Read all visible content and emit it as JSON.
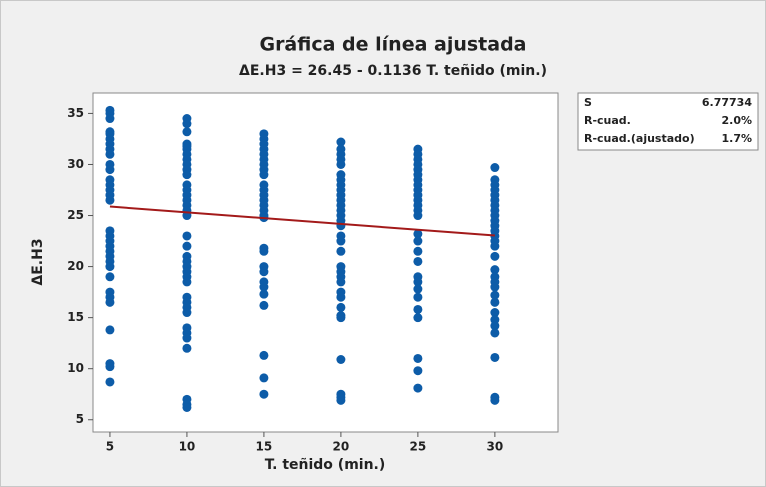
{
  "chart_data": {
    "type": "scatter",
    "title": "Gráfica de línea ajustada",
    "subtitle": "ΔE.H3 = 26.45 - 0.1136 T. teñido (min.)",
    "x_label": "T. teñido (min.)",
    "y_label": "ΔE.H3",
    "color": "#0d5ca8",
    "groups": [
      {
        "x": 5,
        "values": [
          35.3,
          35,
          34.5,
          33.2,
          33,
          32.5,
          32,
          31.5,
          31,
          30,
          29.5,
          28.5,
          28,
          27.5,
          27,
          26.5,
          23.5,
          23,
          22.5,
          22,
          21.5,
          21,
          20.5,
          20,
          19,
          17.5,
          17,
          16.5,
          13.8,
          10.5,
          10.2,
          8.7
        ]
      },
      {
        "x": 10,
        "values": [
          34.5,
          34,
          33.2,
          32,
          31.8,
          31.5,
          31,
          30.5,
          30,
          29.5,
          29,
          28,
          27.5,
          27,
          26.5,
          26,
          25.5,
          25,
          23,
          22,
          21,
          20.5,
          20,
          19.5,
          19,
          18.5,
          17,
          16.5,
          16,
          15.5,
          14,
          13.5,
          13,
          12,
          7,
          6.5,
          6.2
        ]
      },
      {
        "x": 15,
        "values": [
          33,
          32.5,
          32,
          31.5,
          31,
          30.5,
          30,
          29.5,
          29,
          28,
          27.5,
          27,
          26.5,
          26,
          25.5,
          25,
          24.8,
          21.8,
          21.5,
          20,
          19.5,
          18.5,
          18,
          17.3,
          16.2,
          11.3,
          9.1,
          7.5
        ]
      },
      {
        "x": 20,
        "values": [
          32.2,
          31.5,
          31,
          30.5,
          30,
          29,
          28.5,
          28,
          27.5,
          27,
          26.5,
          26,
          25.5,
          25,
          24.5,
          24,
          23,
          22.5,
          21.5,
          20,
          19.5,
          19,
          18.5,
          17.5,
          17,
          16,
          15.2,
          15,
          10.9,
          7.5,
          7.2,
          6.9
        ]
      },
      {
        "x": 25,
        "values": [
          31.5,
          31,
          30.5,
          30,
          29.5,
          29,
          28.5,
          28,
          27.5,
          27,
          26.5,
          26,
          25.5,
          25,
          23.2,
          22.5,
          21.5,
          20.5,
          19,
          18.5,
          17.8,
          17,
          15.8,
          15,
          11,
          9.8,
          8.1
        ]
      },
      {
        "x": 30,
        "values": [
          29.7,
          28.5,
          28,
          27.5,
          27,
          26.5,
          26,
          25.5,
          25,
          24.5,
          24,
          23.5,
          23,
          22.5,
          22,
          21,
          19.7,
          19,
          18.5,
          18,
          17.2,
          16.5,
          15.5,
          14.8,
          14.2,
          13.5,
          11.1,
          7.2,
          6.9
        ]
      }
    ],
    "fit": {
      "x": [
        5,
        30
      ],
      "values": [
        25.88,
        23.04
      ],
      "color": "#a31a1a"
    },
    "xlim": [
      3.9,
      34.1
    ],
    "xticks": [
      5,
      10,
      15,
      20,
      25,
      30
    ],
    "ylim": [
      3.8,
      37
    ],
    "yticks": [
      5,
      10,
      15,
      20,
      25,
      30,
      35
    ],
    "stats": [
      [
        "S",
        "6.77734"
      ],
      [
        "R-cuad.",
        "2.0%"
      ],
      [
        "R-cuad.(ajustado)",
        "1.7%"
      ]
    ]
  }
}
